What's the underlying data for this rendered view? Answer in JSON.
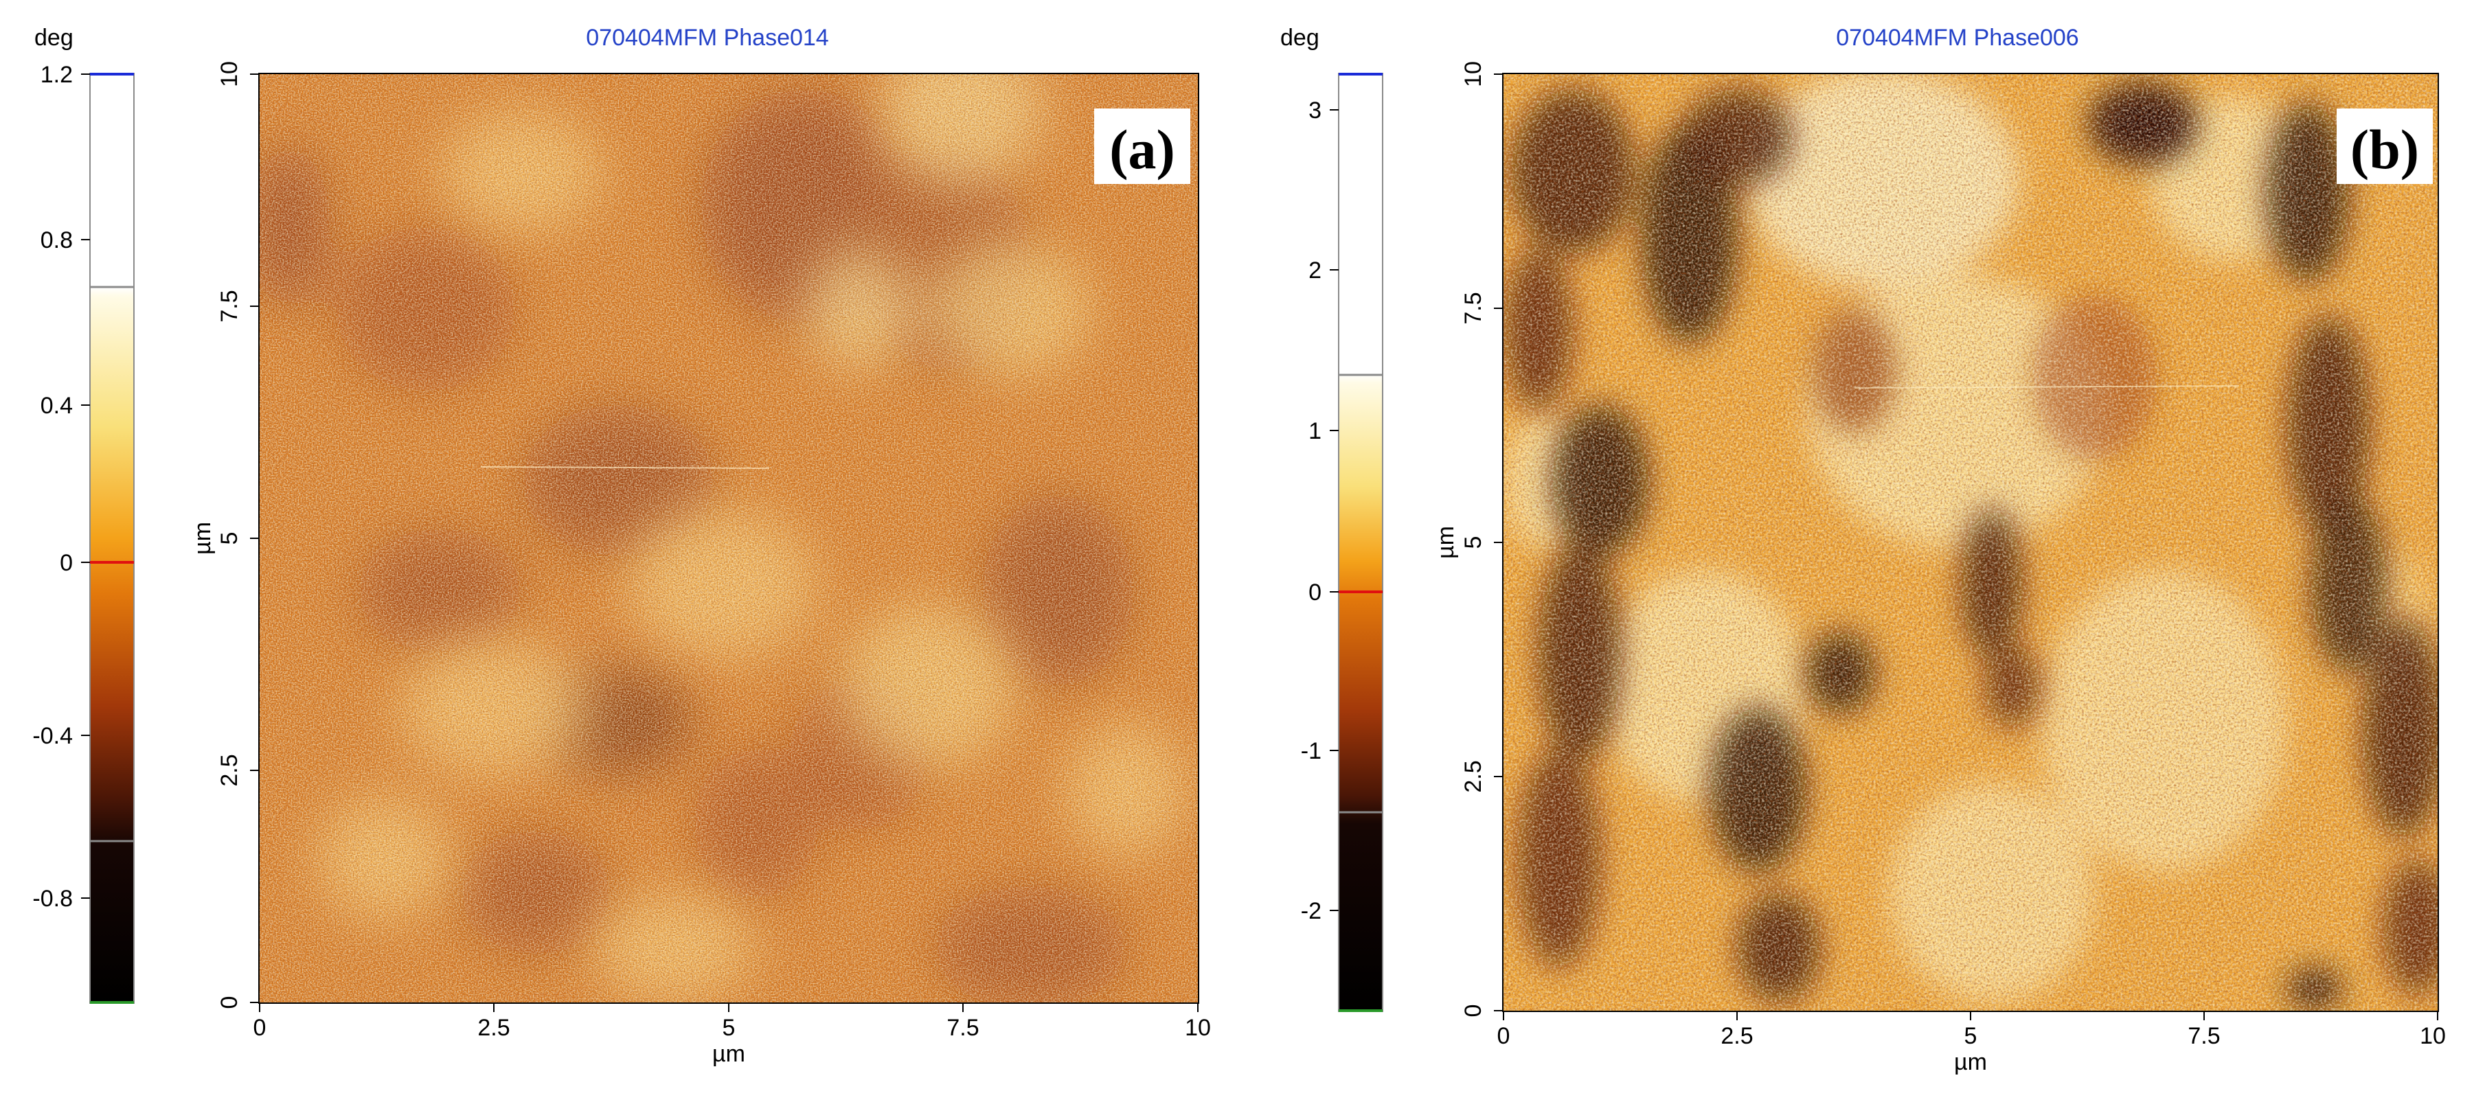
{
  "panels": [
    {
      "id": "a",
      "title": "070404MFM Phase014",
      "tag": "(a)",
      "colorbar": {
        "unit": "deg",
        "ticks": [
          "1.2",
          "0.8",
          "0.4",
          "0",
          "-0.4",
          "-0.8"
        ],
        "top_marker_color": "#1a2bd8",
        "zero_marker_color": "#e01010",
        "bottom_marker_color": "#2a9a2a"
      },
      "y_axis": {
        "label": "µm",
        "ticks": [
          "10",
          "7.5",
          "5",
          "2.5",
          "0"
        ]
      },
      "x_axis": {
        "label": "µm",
        "ticks": [
          "0",
          "2.5",
          "5",
          "7.5",
          "10"
        ]
      }
    },
    {
      "id": "b",
      "title": "070404MFM Phase006",
      "tag": "(b)",
      "colorbar": {
        "unit": "deg",
        "ticks": [
          "3",
          "2",
          "1",
          "0",
          "-1",
          "-2"
        ],
        "top_marker_color": "#1a2bd8",
        "zero_marker_color": "#e01010",
        "bottom_marker_color": "#2a9a2a"
      },
      "y_axis": {
        "label": "µm",
        "ticks": [
          "10",
          "7.5",
          "5",
          "2.5",
          "0"
        ]
      },
      "x_axis": {
        "label": "µm",
        "ticks": [
          "0",
          "2.5",
          "5",
          "7.5",
          "10"
        ]
      }
    }
  ]
}
